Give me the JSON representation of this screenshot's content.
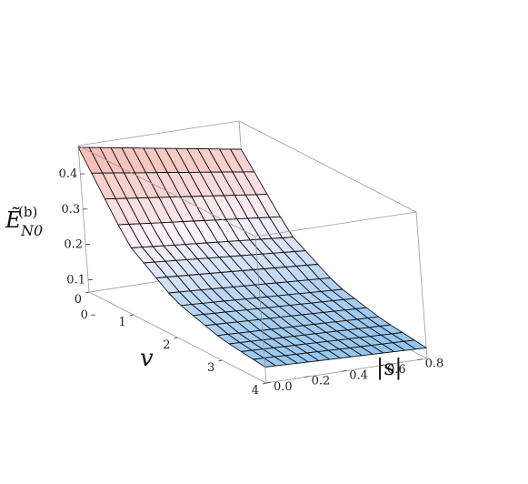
{
  "chart_data": {
    "type": "surface3d",
    "title": "",
    "zlabel": "Ẽ^{(b)}_{N0}",
    "zlabel_parts": {
      "base": "Ẽ",
      "sup": "(b)",
      "sub": "N0"
    },
    "xlabel": "v",
    "ylabel": "|s|",
    "x_range": [
      0,
      4
    ],
    "y_range": [
      0,
      0.85
    ],
    "z_range": [
      0.065,
      0.48
    ],
    "x_ticks": [
      0,
      1,
      2,
      3,
      4
    ],
    "x_tick_labels": [
      "0",
      "1",
      "2",
      "3",
      "4"
    ],
    "y_ticks": [
      0.0,
      0.2,
      0.4,
      0.6,
      0.8
    ],
    "y_tick_labels": [
      "0.0",
      "0.2",
      "0.4",
      "0.6",
      "0.8"
    ],
    "z_ticks": [
      0,
      0.1,
      0.2,
      0.3,
      0.4
    ],
    "z_tick_labels": [
      "0",
      "0.1",
      "0.2",
      "0.3",
      "0.4"
    ],
    "mesh_lines": {
      "v": 15,
      "s": 15
    },
    "surface_samples": {
      "v": [
        0,
        1,
        2,
        3,
        4
      ],
      "s_0_0": [
        0.475,
        0.265,
        0.17,
        0.128,
        0.11
      ],
      "s_0_85": [
        0.4,
        0.225,
        0.145,
        0.112,
        0.095
      ]
    },
    "colors": {
      "high": "#f6b9ae",
      "mid": "#fbf3fb",
      "low": "#8ec2ee",
      "mesh": "#111111",
      "box": "#9a9a9a"
    }
  }
}
